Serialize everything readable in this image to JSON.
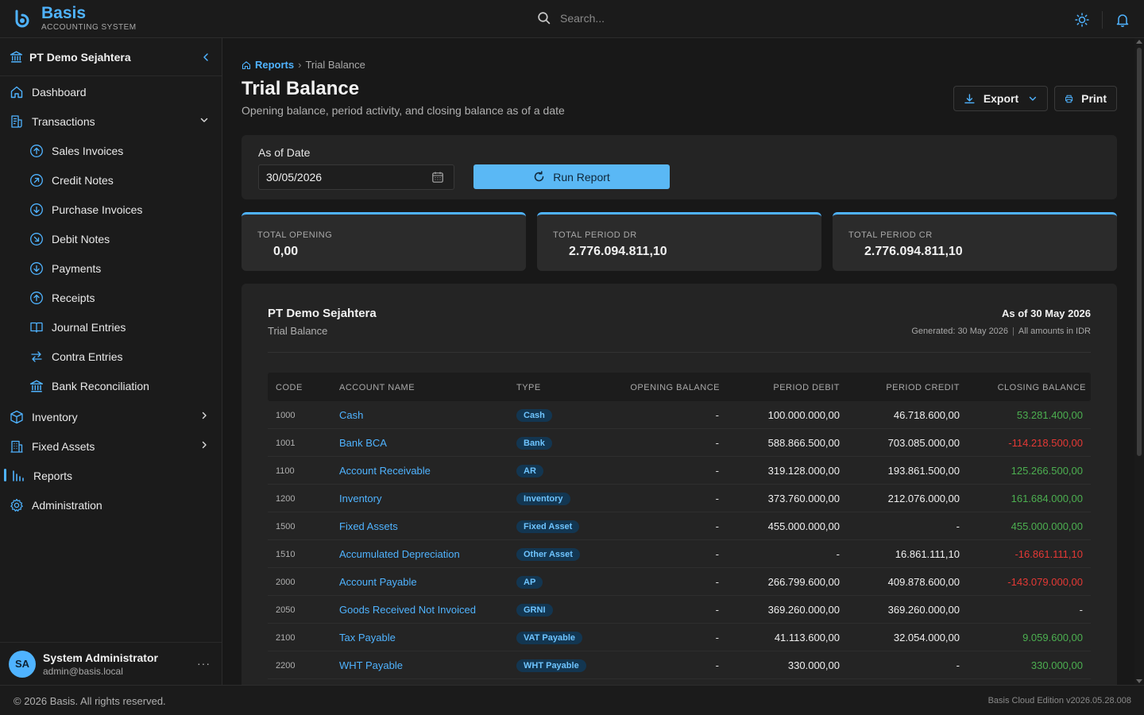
{
  "app": {
    "name": "Basis",
    "subtitle": "ACCOUNTING SYSTEM",
    "accent": "#4fb3ff"
  },
  "search": {
    "placeholder": "Search..."
  },
  "sidebar": {
    "company": "PT Demo Sejahtera",
    "items": [
      {
        "label": "Dashboard",
        "icon": "home-icon"
      },
      {
        "label": "Transactions",
        "icon": "document-icon",
        "expanded": true
      },
      {
        "label": "Sales Invoices",
        "icon": "arrow-up-circle-icon"
      },
      {
        "label": "Credit Notes",
        "icon": "arrow-up-right-circle-icon"
      },
      {
        "label": "Purchase Invoices",
        "icon": "arrow-down-circle-icon"
      },
      {
        "label": "Debit Notes",
        "icon": "arrow-down-right-circle-icon"
      },
      {
        "label": "Payments",
        "icon": "arrow-down-circle-icon"
      },
      {
        "label": "Receipts",
        "icon": "arrow-up-circle-icon"
      },
      {
        "label": "Journal Entries",
        "icon": "book-icon"
      },
      {
        "label": "Contra Entries",
        "icon": "swap-icon"
      },
      {
        "label": "Bank Reconciliation",
        "icon": "bank-icon"
      },
      {
        "label": "Inventory",
        "icon": "box-icon"
      },
      {
        "label": "Fixed Assets",
        "icon": "building-icon"
      },
      {
        "label": "Reports",
        "icon": "bar-chart-icon",
        "active": true
      },
      {
        "label": "Administration",
        "icon": "gear-icon"
      }
    ],
    "user": {
      "initials": "SA",
      "name": "System Administrator",
      "email": "admin@basis.local",
      "more": "···"
    }
  },
  "breadcrumb": {
    "root": "Reports",
    "sep": "›",
    "current": "Trial Balance"
  },
  "page": {
    "title": "Trial Balance",
    "subtitle": "Opening balance, period activity, and closing balance as of a date",
    "export_label": "Export",
    "print_label": "Print"
  },
  "filter": {
    "label": "As of Date",
    "date": "30/05/2026",
    "run_label": "Run Report"
  },
  "stats": [
    {
      "label": "TOTAL OPENING",
      "value": "0,00"
    },
    {
      "label": "TOTAL PERIOD DR",
      "value": "2.776.094.811,10"
    },
    {
      "label": "TOTAL PERIOD CR",
      "value": "2.776.094.811,10"
    }
  ],
  "report": {
    "company": "PT Demo Sejahtera",
    "type": "Trial Balance",
    "as_of": "As of 30 May 2026",
    "generated": "Generated: 30 May 2026",
    "pipe": "|",
    "currency_note": "All amounts in IDR",
    "columns": [
      "CODE",
      "ACCOUNT NAME",
      "TYPE",
      "OPENING BALANCE",
      "PERIOD DEBIT",
      "PERIOD CREDIT",
      "CLOSING BALANCE"
    ],
    "rows": [
      {
        "code": "1000",
        "name": "Cash",
        "type": "Cash",
        "opening": "-",
        "debit": "100.000.000,00",
        "credit": "46.718.600,00",
        "closing": "53.281.400,00",
        "sign": "pos"
      },
      {
        "code": "1001",
        "name": "Bank BCA",
        "type": "Bank",
        "opening": "-",
        "debit": "588.866.500,00",
        "credit": "703.085.000,00",
        "closing": "-114.218.500,00",
        "sign": "neg"
      },
      {
        "code": "1100",
        "name": "Account Receivable",
        "type": "AR",
        "opening": "-",
        "debit": "319.128.000,00",
        "credit": "193.861.500,00",
        "closing": "125.266.500,00",
        "sign": "pos"
      },
      {
        "code": "1200",
        "name": "Inventory",
        "type": "Inventory",
        "opening": "-",
        "debit": "373.760.000,00",
        "credit": "212.076.000,00",
        "closing": "161.684.000,00",
        "sign": "pos"
      },
      {
        "code": "1500",
        "name": "Fixed Assets",
        "type": "Fixed Asset",
        "opening": "-",
        "debit": "455.000.000,00",
        "credit": "-",
        "closing": "455.000.000,00",
        "sign": "pos"
      },
      {
        "code": "1510",
        "name": "Accumulated Depreciation",
        "type": "Other Asset",
        "opening": "-",
        "debit": "-",
        "credit": "16.861.111,10",
        "closing": "-16.861.111,10",
        "sign": "neg"
      },
      {
        "code": "2000",
        "name": "Account Payable",
        "type": "AP",
        "opening": "-",
        "debit": "266.799.600,00",
        "credit": "409.878.600,00",
        "closing": "-143.079.000,00",
        "sign": "neg"
      },
      {
        "code": "2050",
        "name": "Goods Received Not Invoiced",
        "type": "GRNI",
        "opening": "-",
        "debit": "369.260.000,00",
        "credit": "369.260.000,00",
        "closing": "-",
        "sign": "neutral"
      },
      {
        "code": "2100",
        "name": "Tax Payable",
        "type": "VAT Payable",
        "opening": "-",
        "debit": "41.113.600,00",
        "credit": "32.054.000,00",
        "closing": "9.059.600,00",
        "sign": "pos"
      },
      {
        "code": "2200",
        "name": "WHT Payable",
        "type": "WHT Payable",
        "opening": "-",
        "debit": "330.000,00",
        "credit": "-",
        "closing": "330.000,00",
        "sign": "pos"
      }
    ]
  },
  "footer": {
    "copyright": "© 2026 Basis. All rights reserved.",
    "version": "Basis Cloud Edition v2026.05.28.008"
  }
}
